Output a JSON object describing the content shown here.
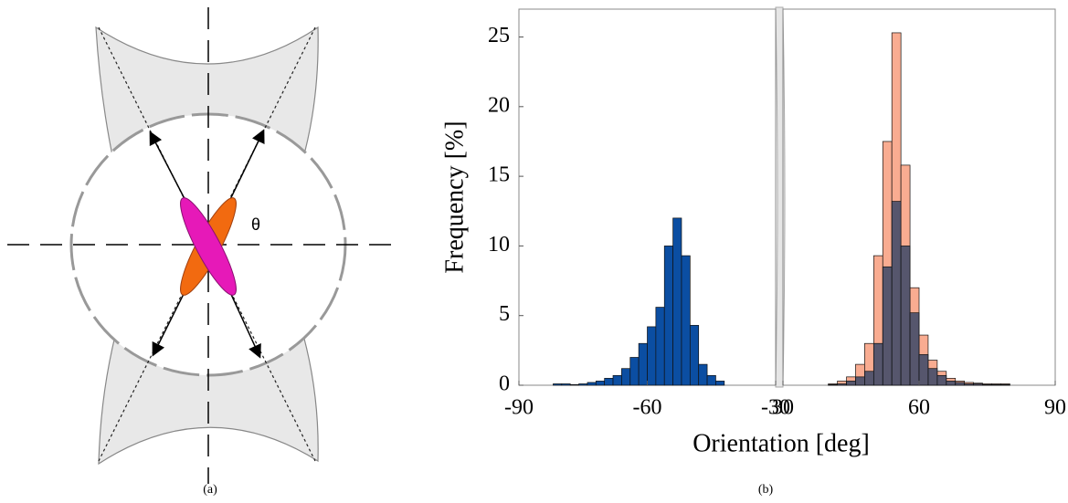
{
  "diagram": {
    "angle_label": "θ"
  },
  "captions": [
    "(a)",
    "(b)"
  ],
  "chart_data": [
    {
      "type": "histogram",
      "xlabel": "Orientation [deg]",
      "ylabel": "Frequency [%]",
      "xlim": [
        -90,
        -30
      ],
      "xticks": [
        -90,
        -60,
        -30
      ],
      "ylim": [
        0,
        27
      ],
      "yticks": [
        0,
        5,
        10,
        15,
        20,
        25
      ],
      "bins": [
        -82,
        -80,
        -78,
        -76,
        -74,
        -72,
        -70,
        -68,
        -66,
        -64,
        -62,
        -60,
        -58,
        -56,
        -54,
        -52,
        -50,
        -48,
        -46,
        -44,
        -42
      ],
      "series": [
        {
          "color": "#0b4ea2",
          "values": [
            0.1,
            0.1,
            0.05,
            0.1,
            0.2,
            0.3,
            0.5,
            0.7,
            1.2,
            2,
            3,
            4.2,
            5.6,
            10,
            12,
            9.3,
            4.3,
            1.5,
            0.7,
            0.3
          ]
        }
      ]
    },
    {
      "type": "histogram",
      "xlim": [
        30,
        90
      ],
      "xticks": [
        30,
        60,
        90
      ],
      "ylim": [
        0,
        27
      ],
      "bins": [
        40,
        42,
        44,
        46,
        48,
        50,
        52,
        54,
        56,
        58,
        60,
        62,
        64,
        66,
        68,
        70,
        72,
        74,
        76,
        78,
        80
      ],
      "series": [
        {
          "color": "#f9ac91",
          "values": [
            0.1,
            0.3,
            0.6,
            1.5,
            3,
            9.3,
            17.5,
            25.3,
            15.8,
            7,
            3.6,
            1.8,
            1,
            0.5,
            0.3,
            0.2,
            0.15,
            0.1,
            0.1,
            0.1
          ]
        },
        {
          "color": "#3a4766",
          "values": [
            0.05,
            0.1,
            0.3,
            0.6,
            1,
            3,
            8.5,
            13.2,
            10,
            5.2,
            2.2,
            1.2,
            0.7,
            0.3,
            0.2,
            0.1,
            0.1,
            0.05,
            0.05,
            0.05
          ]
        }
      ]
    }
  ]
}
